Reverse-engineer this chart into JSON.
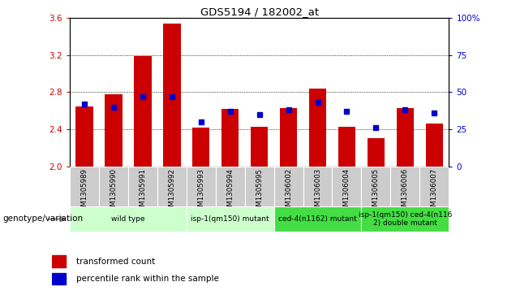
{
  "title": "GDS5194 / 182002_at",
  "samples": [
    "GSM1305989",
    "GSM1305990",
    "GSM1305991",
    "GSM1305992",
    "GSM1305993",
    "GSM1305994",
    "GSM1305995",
    "GSM1306002",
    "GSM1306003",
    "GSM1306004",
    "GSM1306005",
    "GSM1306006",
    "GSM1306007"
  ],
  "bar_values": [
    2.65,
    2.78,
    3.19,
    3.54,
    2.42,
    2.62,
    2.43,
    2.63,
    2.84,
    2.43,
    2.31,
    2.63,
    2.46
  ],
  "percentile_values": [
    42,
    40,
    47,
    47,
    30,
    37,
    35,
    38,
    43,
    37,
    26,
    38,
    36
  ],
  "ymin": 2.0,
  "ymax": 3.6,
  "yticks": [
    2.0,
    2.4,
    2.8,
    3.2,
    3.6
  ],
  "right_yticks": [
    0,
    25,
    50,
    75,
    100
  ],
  "bar_color": "#cc0000",
  "percentile_color": "#0000cc",
  "col_bg": "#cccccc",
  "group_defs": [
    {
      "label": "wild type",
      "start": 0,
      "end": 3,
      "color": "#ccffcc"
    },
    {
      "label": "isp-1(qm150) mutant",
      "start": 4,
      "end": 6,
      "color": "#ccffcc"
    },
    {
      "label": "ced-4(n1162) mutant",
      "start": 7,
      "end": 9,
      "color": "#44dd44"
    },
    {
      "label": "isp-1(qm150) ced-4(n116\n2) double mutant",
      "start": 10,
      "end": 12,
      "color": "#44dd44"
    }
  ],
  "genotype_label": "genotype/variation",
  "legend_labels": [
    "transformed count",
    "percentile rank within the sample"
  ],
  "legend_colors": [
    "#cc0000",
    "#0000cc"
  ]
}
